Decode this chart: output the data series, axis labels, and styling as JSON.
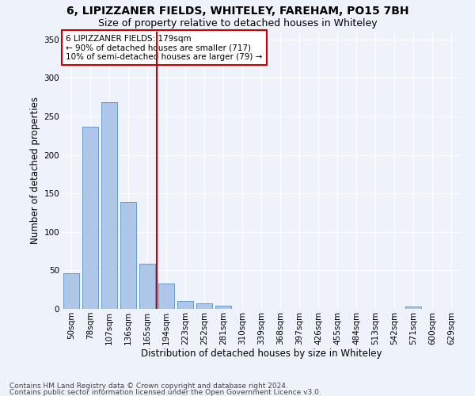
{
  "title1": "6, LIPIZZANER FIELDS, WHITELEY, FAREHAM, PO15 7BH",
  "title2": "Size of property relative to detached houses in Whiteley",
  "xlabel": "Distribution of detached houses by size in Whiteley",
  "ylabel": "Number of detached properties",
  "footer1": "Contains HM Land Registry data © Crown copyright and database right 2024.",
  "footer2": "Contains public sector information licensed under the Open Government Licence v3.0.",
  "annotation_line1": "6 LIPIZZANER FIELDS: 179sqm",
  "annotation_line2": "← 90% of detached houses are smaller (717)",
  "annotation_line3": "10% of semi-detached houses are larger (79) →",
  "bar_values": [
    46,
    237,
    268,
    139,
    59,
    33,
    10,
    7,
    4,
    0,
    0,
    0,
    0,
    0,
    0,
    0,
    0,
    0,
    3,
    0,
    0
  ],
  "categories": [
    "50sqm",
    "78sqm",
    "107sqm",
    "136sqm",
    "165sqm",
    "194sqm",
    "223sqm",
    "252sqm",
    "281sqm",
    "310sqm",
    "339sqm",
    "368sqm",
    "397sqm",
    "426sqm",
    "455sqm",
    "484sqm",
    "513sqm",
    "542sqm",
    "571sqm",
    "600sqm",
    "629sqm"
  ],
  "bar_color": "#aec6e8",
  "bar_edge_color": "#5a8fc2",
  "vline_color": "#cc0000",
  "annotation_box_color": "#cc0000",
  "background_color": "#eef2fb",
  "grid_color": "#ffffff",
  "ylim": [
    0,
    360
  ],
  "yticks": [
    0,
    50,
    100,
    150,
    200,
    250,
    300,
    350
  ],
  "title1_fontsize": 10,
  "title2_fontsize": 9,
  "axis_fontsize": 8.5,
  "tick_fontsize": 7.5,
  "annotation_fontsize": 7.5,
  "footer_fontsize": 6.5
}
